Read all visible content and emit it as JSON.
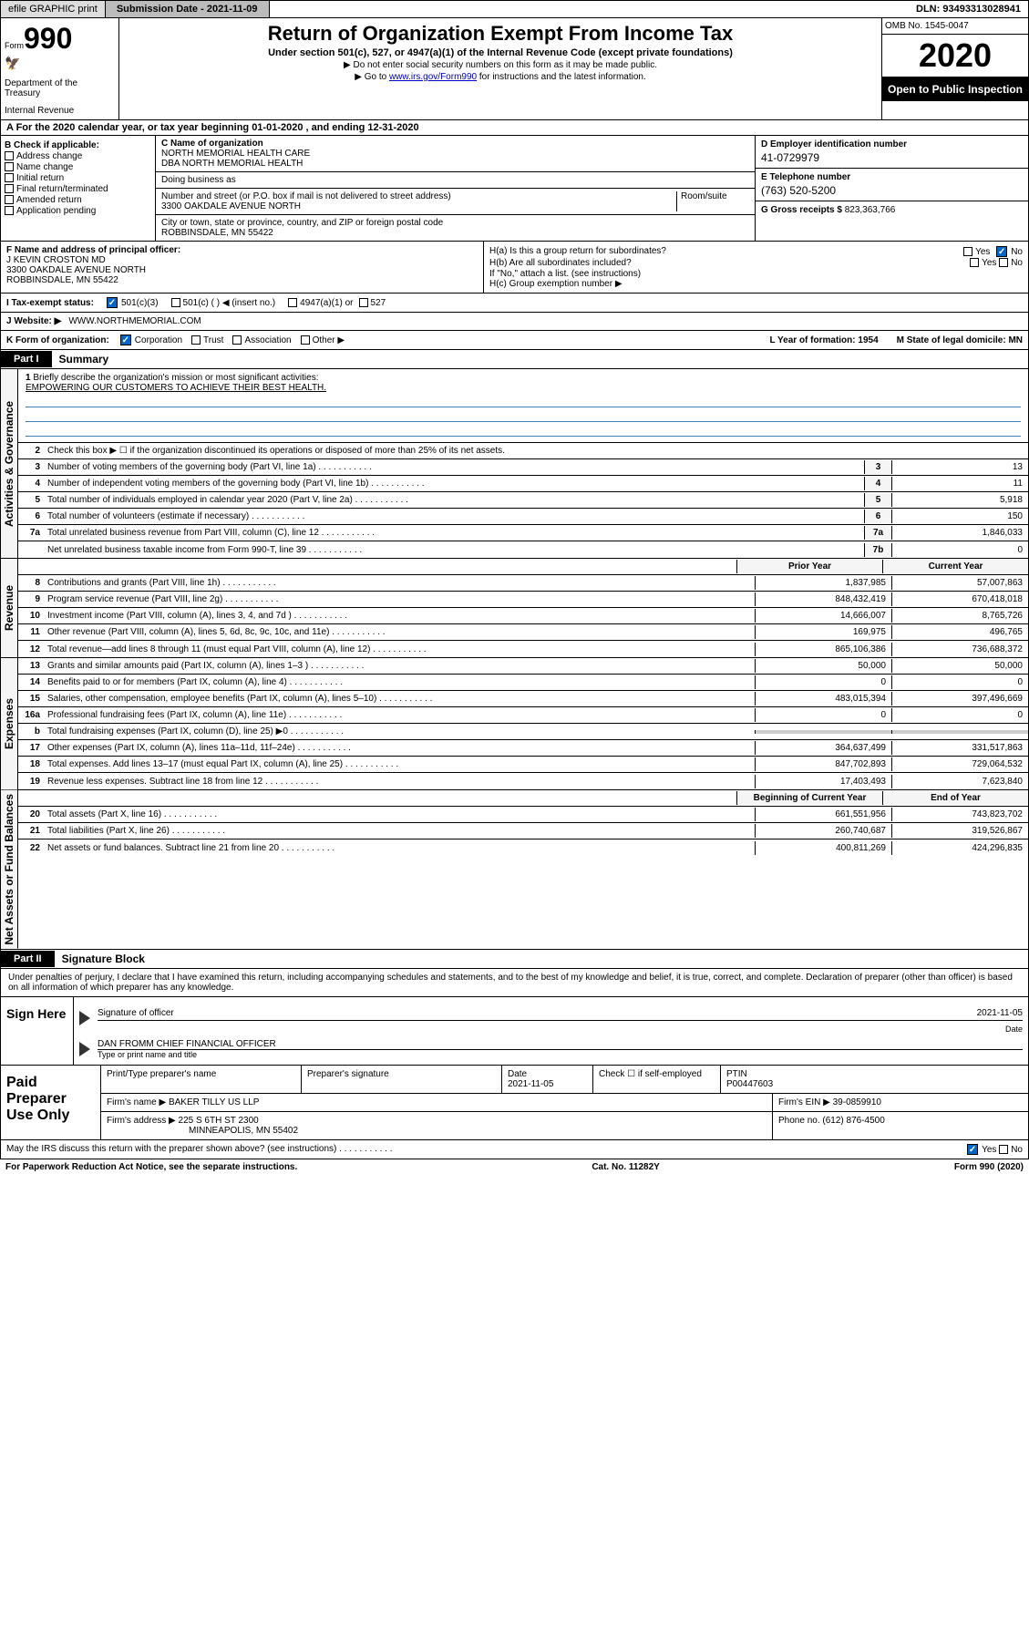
{
  "topbar": {
    "efile": "efile GRAPHIC print",
    "submission": "Submission Date - 2021-11-09",
    "dln": "DLN: 93493313028941"
  },
  "header": {
    "form_label": "Form",
    "form_num": "990",
    "dept1": "Department of the Treasury",
    "dept2": "Internal Revenue",
    "title": "Return of Organization Exempt From Income Tax",
    "subtitle": "Under section 501(c), 527, or 4947(a)(1) of the Internal Revenue Code (except private foundations)",
    "note1": "▶ Do not enter social security numbers on this form as it may be made public.",
    "note2_prefix": "▶ Go to ",
    "note2_link": "www.irs.gov/Form990",
    "note2_suffix": " for instructions and the latest information.",
    "omb": "OMB No. 1545-0047",
    "year": "2020",
    "inspection": "Open to Public Inspection"
  },
  "section_a": "A For the 2020 calendar year, or tax year beginning 01-01-2020    , and ending 12-31-2020",
  "col_b": {
    "header": "B Check if applicable:",
    "addr": "Address change",
    "name": "Name change",
    "initial": "Initial return",
    "final": "Final return/terminated",
    "amended": "Amended return",
    "app": "Application pending"
  },
  "col_c": {
    "name_label": "C Name of organization",
    "name1": "NORTH MEMORIAL HEALTH CARE",
    "name2": "DBA NORTH MEMORIAL HEALTH",
    "dba": "Doing business as",
    "street_label": "Number and street (or P.O. box if mail is not delivered to street address)",
    "room_label": "Room/suite",
    "street": "3300 OAKDALE AVENUE NORTH",
    "city_label": "City or town, state or province, country, and ZIP or foreign postal code",
    "city": "ROBBINSDALE, MN  55422"
  },
  "col_d": {
    "ein_label": "D Employer identification number",
    "ein": "41-0729979",
    "tel_label": "E Telephone number",
    "tel": "(763) 520-5200",
    "gross_label": "G Gross receipts $",
    "gross": "823,363,766"
  },
  "f": {
    "label": "F  Name and address of principal officer:",
    "name": "J KEVIN CROSTON MD",
    "addr1": "3300 OAKDALE AVENUE NORTH",
    "addr2": "ROBBINSDALE, MN  55422"
  },
  "h": {
    "a": "H(a)  Is this a group return for subordinates?",
    "b": "H(b)  Are all subordinates included?",
    "b_note": "If \"No,\" attach a list. (see instructions)",
    "c": "H(c)  Group exemption number ▶",
    "yes": "Yes",
    "no": "No"
  },
  "i": {
    "label": "I  Tax-exempt status:",
    "opt1": "501(c)(3)",
    "opt2": "501(c) (   ) ◀ (insert no.)",
    "opt3": "4947(a)(1) or",
    "opt4": "527"
  },
  "j": {
    "label": "J  Website: ▶",
    "val": "WWW.NORTHMEMORIAL.COM"
  },
  "k": {
    "label": "K Form of organization:",
    "corp": "Corporation",
    "trust": "Trust",
    "assoc": "Association",
    "other": "Other ▶",
    "l": "L Year of formation: 1954",
    "m": "M State of legal domicile: MN"
  },
  "part1": {
    "tab": "Part I",
    "title": "Summary"
  },
  "summary": {
    "q1": "Briefly describe the organization's mission or most significant activities:",
    "mission": "EMPOWERING OUR CUSTOMERS TO ACHIEVE THEIR BEST HEALTH.",
    "q2": "Check this box ▶ ☐  if the organization discontinued its operations or disposed of more than 25% of its net assets.",
    "rows_single": [
      {
        "n": "3",
        "d": "Number of voting members of the governing body (Part VI, line 1a)",
        "ln": "3",
        "v": "13"
      },
      {
        "n": "4",
        "d": "Number of independent voting members of the governing body (Part VI, line 1b)",
        "ln": "4",
        "v": "11"
      },
      {
        "n": "5",
        "d": "Total number of individuals employed in calendar year 2020 (Part V, line 2a)",
        "ln": "5",
        "v": "5,918"
      },
      {
        "n": "6",
        "d": "Total number of volunteers (estimate if necessary)",
        "ln": "6",
        "v": "150"
      },
      {
        "n": "7a",
        "d": "Total unrelated business revenue from Part VIII, column (C), line 12",
        "ln": "7a",
        "v": "1,846,033"
      },
      {
        "n": "",
        "d": "Net unrelated business taxable income from Form 990-T, line 39",
        "ln": "7b",
        "v": "0"
      }
    ],
    "prior_label": "Prior Year",
    "current_label": "Current Year",
    "revenue": [
      {
        "n": "8",
        "d": "Contributions and grants (Part VIII, line 1h)",
        "p": "1,837,985",
        "c": "57,007,863"
      },
      {
        "n": "9",
        "d": "Program service revenue (Part VIII, line 2g)",
        "p": "848,432,419",
        "c": "670,418,018"
      },
      {
        "n": "10",
        "d": "Investment income (Part VIII, column (A), lines 3, 4, and 7d )",
        "p": "14,666,007",
        "c": "8,765,726"
      },
      {
        "n": "11",
        "d": "Other revenue (Part VIII, column (A), lines 5, 6d, 8c, 9c, 10c, and 11e)",
        "p": "169,975",
        "c": "496,765"
      },
      {
        "n": "12",
        "d": "Total revenue—add lines 8 through 11 (must equal Part VIII, column (A), line 12)",
        "p": "865,106,386",
        "c": "736,688,372"
      }
    ],
    "expenses": [
      {
        "n": "13",
        "d": "Grants and similar amounts paid (Part IX, column (A), lines 1–3 )",
        "p": "50,000",
        "c": "50,000"
      },
      {
        "n": "14",
        "d": "Benefits paid to or for members (Part IX, column (A), line 4)",
        "p": "0",
        "c": "0"
      },
      {
        "n": "15",
        "d": "Salaries, other compensation, employee benefits (Part IX, column (A), lines 5–10)",
        "p": "483,015,394",
        "c": "397,496,669"
      },
      {
        "n": "16a",
        "d": "Professional fundraising fees (Part IX, column (A), line 11e)",
        "p": "0",
        "c": "0"
      },
      {
        "n": "b",
        "d": "Total fundraising expenses (Part IX, column (D), line 25) ▶0",
        "p": "",
        "c": "",
        "grey": true
      },
      {
        "n": "17",
        "d": "Other expenses (Part IX, column (A), lines 11a–11d, 11f–24e)",
        "p": "364,637,499",
        "c": "331,517,863"
      },
      {
        "n": "18",
        "d": "Total expenses. Add lines 13–17 (must equal Part IX, column (A), line 25)",
        "p": "847,702,893",
        "c": "729,064,532"
      },
      {
        "n": "19",
        "d": "Revenue less expenses. Subtract line 18 from line 12",
        "p": "17,403,493",
        "c": "7,623,840"
      }
    ],
    "begin_label": "Beginning of Current Year",
    "end_label": "End of Year",
    "netassets": [
      {
        "n": "20",
        "d": "Total assets (Part X, line 16)",
        "p": "661,551,956",
        "c": "743,823,702"
      },
      {
        "n": "21",
        "d": "Total liabilities (Part X, line 26)",
        "p": "260,740,687",
        "c": "319,526,867"
      },
      {
        "n": "22",
        "d": "Net assets or fund balances. Subtract line 21 from line 20",
        "p": "400,811,269",
        "c": "424,296,835"
      }
    ],
    "side_gov": "Activities & Governance",
    "side_rev": "Revenue",
    "side_exp": "Expenses",
    "side_net": "Net Assets or Fund Balances"
  },
  "part2": {
    "tab": "Part II",
    "title": "Signature Block"
  },
  "sig": {
    "declaration": "Under penalties of perjury, I declare that I have examined this return, including accompanying schedules and statements, and to the best of my knowledge and belief, it is true, correct, and complete. Declaration of preparer (other than officer) is based on all information of which preparer has any knowledge.",
    "sign_here": "Sign Here",
    "officer_sig": "Signature of officer",
    "date_label": "Date",
    "date": "2021-11-05",
    "officer_name": "DAN FROMM  CHIEF FINANCIAL OFFICER",
    "type_label": "Type or print name and title"
  },
  "paid": {
    "label": "Paid Preparer Use Only",
    "print_name": "Print/Type preparer's name",
    "prep_sig": "Preparer's signature",
    "date_label": "Date",
    "date": "2021-11-05",
    "check_label": "Check ☐  if self-employed",
    "ptin_label": "PTIN",
    "ptin": "P00447603",
    "firm_name_label": "Firm's name    ▶",
    "firm_name": "BAKER TILLY US LLP",
    "firm_ein_label": "Firm's EIN ▶",
    "firm_ein": "39-0859910",
    "firm_addr_label": "Firm's address ▶",
    "firm_addr1": "225 S 6TH ST 2300",
    "firm_addr2": "MINNEAPOLIS, MN  55402",
    "phone_label": "Phone no.",
    "phone": "(612) 876-4500"
  },
  "footer": {
    "discuss": "May the IRS discuss this return with the preparer shown above? (see instructions)",
    "yes": "Yes",
    "no": "No",
    "paperwork": "For Paperwork Reduction Act Notice, see the separate instructions.",
    "catno": "Cat. No. 11282Y",
    "formver": "Form 990 (2020)"
  }
}
